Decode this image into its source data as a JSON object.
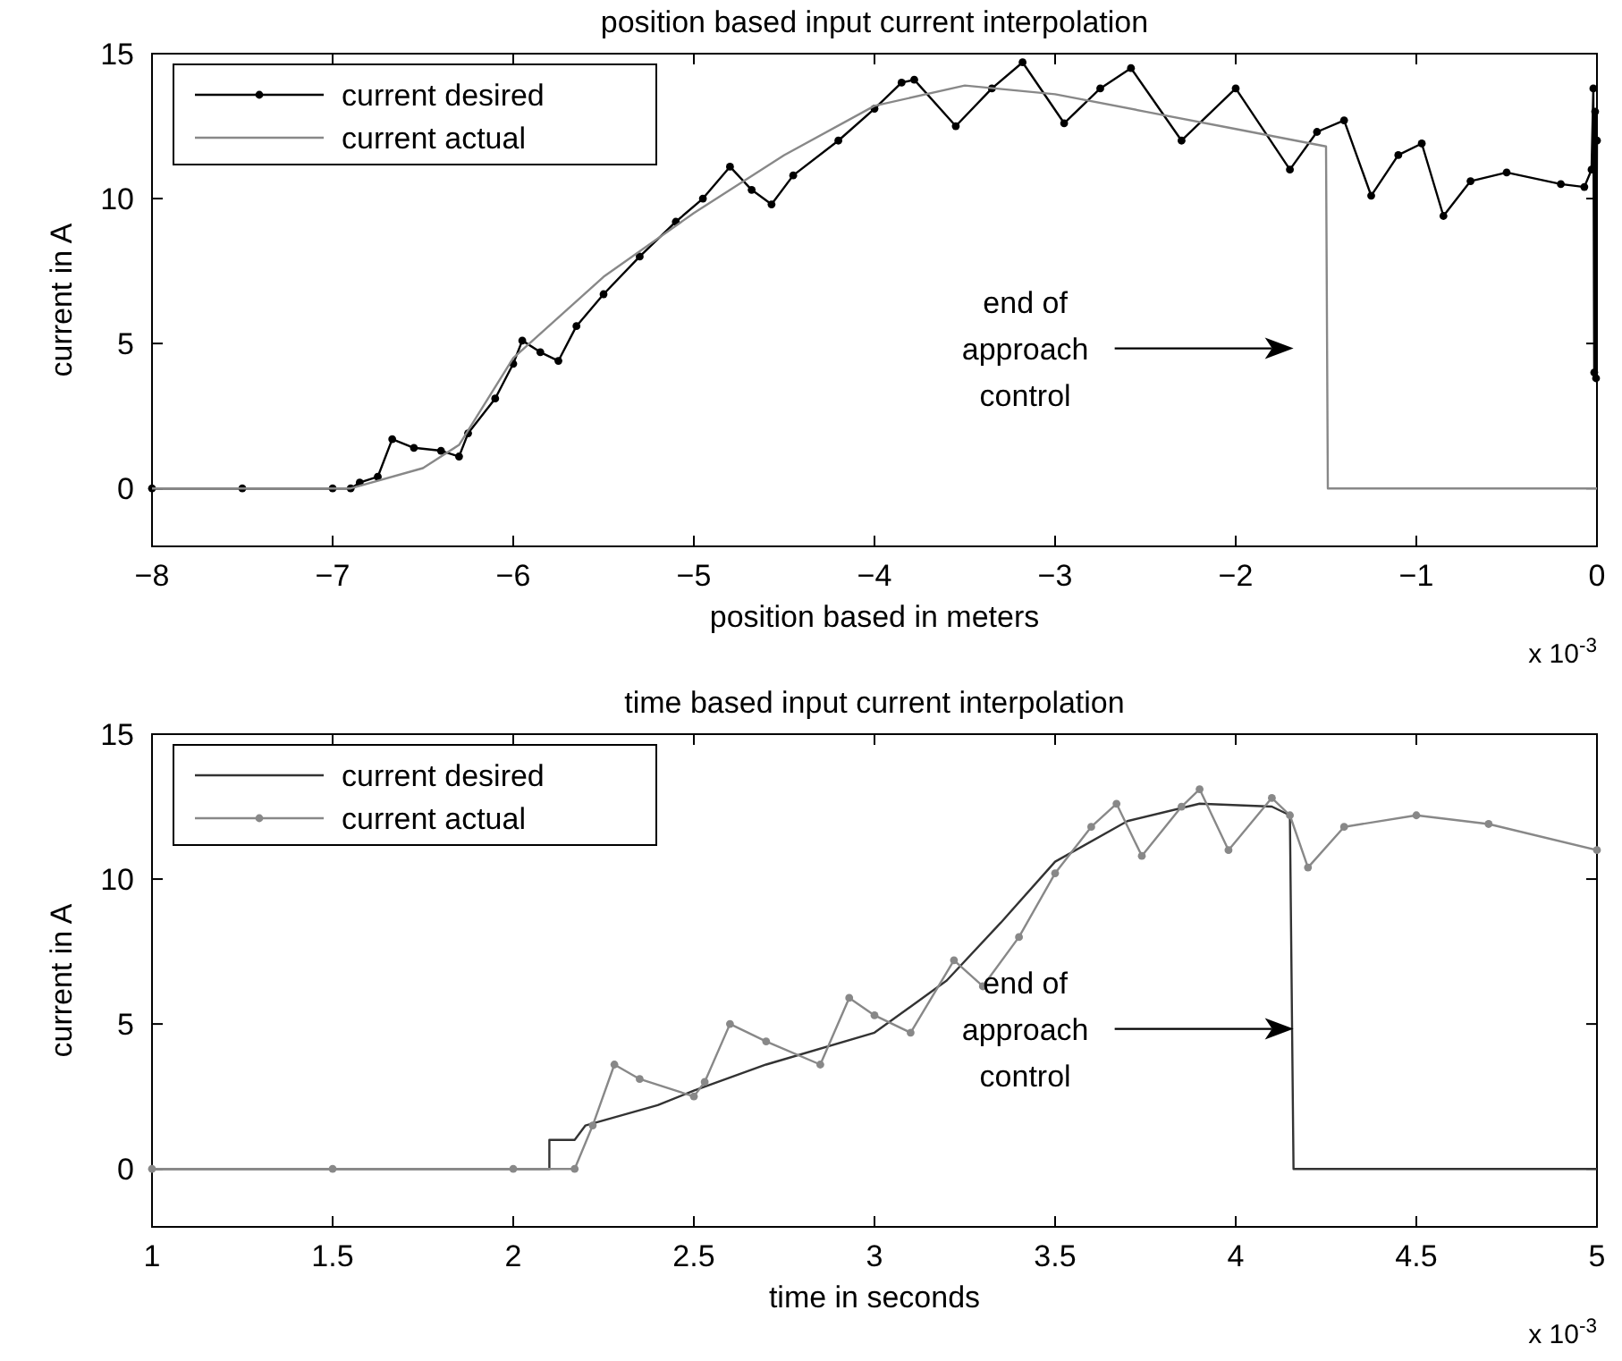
{
  "chart_data": [
    {
      "type": "line",
      "title": "position based input current interpolation",
      "xlabel": "position based in meters",
      "ylabel": "current in A",
      "xlim": [
        -8,
        0
      ],
      "xticks": [
        -8,
        -7,
        -6,
        -5,
        -4,
        -3,
        -2,
        -1,
        0
      ],
      "ylim": [
        -2,
        15
      ],
      "yticks": [
        0,
        5,
        10,
        15
      ],
      "legend": "top left",
      "grid": false,
      "line_style": "solid",
      "annotations": [
        "end of\napproach\ncontrol",
        "x 10$^{-3}$"
      ],
      "series": [
        {
          "name": "current desired",
          "color": "#000000",
          "marker": "circle",
          "x": [
            -8,
            -7.5,
            -7,
            -6.9,
            -6.85,
            -6.75,
            -6.67,
            -6.55,
            -6.4,
            -6.3,
            -6.25,
            -6.1,
            -6.0,
            -5.95,
            -5.85,
            -5.75,
            -5.65,
            -5.5,
            -5.3,
            -5.1,
            -4.95,
            -4.8,
            -4.68,
            -4.57,
            -4.45,
            -4.2,
            -4.0,
            -3.85,
            -3.78,
            -3.55,
            -3.35,
            -3.18,
            -2.95,
            -2.75,
            -2.58,
            -2.3,
            -2.0,
            -1.7,
            -1.55,
            -1.4,
            -1.25,
            -1.1,
            -0.97,
            -0.85,
            -0.7,
            -0.5,
            -0.2,
            -0.07,
            -0.03,
            -0.02,
            -0.015,
            -0.01,
            -0.005,
            0
          ],
          "values": [
            0,
            0,
            0,
            0,
            0.2,
            0.4,
            1.7,
            1.4,
            1.3,
            1.1,
            1.9,
            3.1,
            4.3,
            5.1,
            4.7,
            4.4,
            5.6,
            6.7,
            8.0,
            9.2,
            10.0,
            11.1,
            10.3,
            9.8,
            10.8,
            12.0,
            13.1,
            14.0,
            14.1,
            12.5,
            13.8,
            14.7,
            12.6,
            13.8,
            14.5,
            12.0,
            13.8,
            11.0,
            12.3,
            12.7,
            10.1,
            11.5,
            11.9,
            9.4,
            10.6,
            10.9,
            10.5,
            10.4,
            11,
            13.8,
            4,
            13,
            3.8,
            12
          ]
        },
        {
          "name": "current actual",
          "color": "#888888",
          "marker": "none",
          "x": [
            -8,
            -6.9,
            -6.5,
            -6.3,
            -6,
            -5.5,
            -5,
            -4.5,
            -4,
            -3.5,
            -3,
            -2.5,
            -2,
            -1.5,
            -1.49,
            0
          ],
          "values": [
            0,
            0,
            0.7,
            1.5,
            4.5,
            7.3,
            9.5,
            11.5,
            13.2,
            13.9,
            13.6,
            13.0,
            12.4,
            11.8,
            0,
            0
          ]
        }
      ]
    },
    {
      "type": "line",
      "title": "time based input current interpolation",
      "xlabel": "time in seconds",
      "ylabel": "current in A",
      "xlim": [
        1,
        5
      ],
      "xticks": [
        1,
        1.5,
        2,
        2.5,
        3,
        3.5,
        4,
        4.5,
        5
      ],
      "ylim": [
        -2,
        15
      ],
      "yticks": [
        0,
        5,
        10,
        15
      ],
      "legend": "top left",
      "grid": false,
      "line_style": "solid",
      "annotations": [
        "end of\napproach\ncontrol",
        "x 10$^{-3}$"
      ],
      "series": [
        {
          "name": "current desired",
          "color": "#333333",
          "marker": "none",
          "x": [
            1,
            2.1,
            2.1,
            2.17,
            2.2,
            2.4,
            2.5,
            2.7,
            3.0,
            3.2,
            3.35,
            3.5,
            3.7,
            3.9,
            4.1,
            4.15,
            4.16,
            5
          ],
          "values": [
            0,
            0,
            1.0,
            1.0,
            1.5,
            2.2,
            2.7,
            3.6,
            4.7,
            6.5,
            8.5,
            10.6,
            12.0,
            12.6,
            12.5,
            12.2,
            0,
            0
          ]
        },
        {
          "name": "current actual",
          "color": "#888888",
          "marker": "circle",
          "x": [
            1,
            1.5,
            2,
            2.17,
            2.22,
            2.28,
            2.35,
            2.5,
            2.53,
            2.6,
            2.7,
            2.85,
            2.93,
            3.0,
            3.1,
            3.22,
            3.3,
            3.4,
            3.5,
            3.6,
            3.67,
            3.74,
            3.85,
            3.9,
            3.98,
            4.1,
            4.15,
            4.2,
            4.3,
            4.5,
            4.7,
            5
          ],
          "values": [
            0,
            0,
            0,
            0,
            1.5,
            3.6,
            3.1,
            2.5,
            3.0,
            5.0,
            4.4,
            3.6,
            5.9,
            5.3,
            4.7,
            7.2,
            6.3,
            8.0,
            10.2,
            11.8,
            12.6,
            10.8,
            12.5,
            13.1,
            11.0,
            12.8,
            12.2,
            10.4,
            11.8,
            12.2,
            11.9,
            11.0
          ]
        }
      ]
    }
  ]
}
